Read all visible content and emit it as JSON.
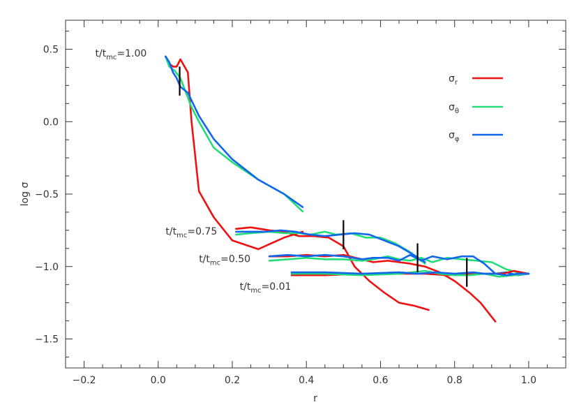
{
  "chart_data": {
    "type": "line",
    "title": "",
    "xlabel": "r",
    "ylabel": "log σ",
    "xlim": [
      -0.25,
      1.1
    ],
    "ylim": [
      -1.7,
      0.7
    ],
    "xticks": [
      "−0.2",
      "0.0",
      "0.2",
      "0.4",
      "0.6",
      "0.8",
      "1.0"
    ],
    "xtick_values": [
      -0.2,
      0.0,
      0.2,
      0.4,
      0.6,
      0.8,
      1.0
    ],
    "yticks": [
      "0.5",
      "0.0",
      "−0.5",
      "−1.0",
      "−1.5"
    ],
    "ytick_values": [
      0.5,
      0.0,
      -0.5,
      -1.0,
      -1.5
    ],
    "grid": false,
    "legend_position": "top-right",
    "colors": {
      "sigma_r": "#ee1111",
      "sigma_theta": "#22dd77",
      "sigma_phi": "#1166ee",
      "marker": "#000000"
    },
    "legend": [
      {
        "key": "sigma_r",
        "symbol": "σ",
        "sub": "r"
      },
      {
        "key": "sigma_theta",
        "symbol": "σ",
        "sub": "θ"
      },
      {
        "key": "sigma_phi",
        "symbol": "σ",
        "sub": "φ"
      }
    ],
    "annotations": [
      {
        "prefix": "t/t",
        "sub": "mc",
        "value": "=1.00",
        "x": -0.17,
        "y": 0.45
      },
      {
        "prefix": "t/t",
        "sub": "mc",
        "value": "=0.75",
        "x": 0.02,
        "y": -0.78
      },
      {
        "prefix": "t/t",
        "sub": "mc",
        "value": "=0.50",
        "x": 0.11,
        "y": -0.97
      },
      {
        "prefix": "t/t",
        "sub": "mc",
        "value": "=0.01",
        "x": 0.22,
        "y": -1.16
      }
    ],
    "series": [
      {
        "key": "sigma_r",
        "group": "1.00",
        "x": [
          0.02,
          0.03,
          0.04,
          0.05,
          0.06,
          0.08,
          0.09,
          0.11,
          0.15,
          0.2,
          0.27,
          0.34,
          0.39
        ],
        "y": [
          0.45,
          0.4,
          0.38,
          0.38,
          0.43,
          0.34,
          0.0,
          -0.48,
          -0.66,
          -0.82,
          -0.88,
          -0.8,
          -0.76
        ]
      },
      {
        "key": "sigma_theta",
        "group": "1.00",
        "x": [
          0.02,
          0.03,
          0.045,
          0.06,
          0.075,
          0.09,
          0.11,
          0.15,
          0.2,
          0.27,
          0.34,
          0.39
        ],
        "y": [
          0.45,
          0.38,
          0.35,
          0.3,
          0.2,
          0.1,
          0.0,
          -0.18,
          -0.28,
          -0.4,
          -0.5,
          -0.62
        ]
      },
      {
        "key": "sigma_phi",
        "group": "1.00",
        "x": [
          0.02,
          0.03,
          0.04,
          0.05,
          0.06,
          0.08,
          0.11,
          0.15,
          0.2,
          0.27,
          0.34,
          0.39
        ],
        "y": [
          0.45,
          0.41,
          0.34,
          0.3,
          0.24,
          0.2,
          0.04,
          -0.12,
          -0.26,
          -0.4,
          -0.5,
          -0.59
        ]
      },
      {
        "key": "sigma_r",
        "group": "0.75",
        "x": [
          0.21,
          0.25,
          0.3,
          0.34,
          0.38,
          0.42,
          0.46,
          0.5,
          0.53,
          0.57,
          0.61,
          0.65,
          0.69,
          0.73
        ],
        "y": [
          -0.74,
          -0.73,
          -0.75,
          -0.76,
          -0.79,
          -0.79,
          -0.8,
          -0.86,
          -1.0,
          -1.1,
          -1.18,
          -1.25,
          -1.27,
          -1.3
        ]
      },
      {
        "key": "sigma_theta",
        "group": "0.75",
        "x": [
          0.21,
          0.25,
          0.3,
          0.34,
          0.38,
          0.41,
          0.45,
          0.48,
          0.52,
          0.56,
          0.6,
          0.64,
          0.68,
          0.72
        ],
        "y": [
          -0.78,
          -0.77,
          -0.76,
          -0.77,
          -0.77,
          -0.78,
          -0.76,
          -0.78,
          -0.77,
          -0.8,
          -0.8,
          -0.84,
          -0.9,
          -0.98
        ]
      },
      {
        "key": "sigma_phi",
        "group": "0.75",
        "x": [
          0.21,
          0.25,
          0.29,
          0.33,
          0.37,
          0.41,
          0.45,
          0.49,
          0.53,
          0.57,
          0.61,
          0.65,
          0.69,
          0.72
        ],
        "y": [
          -0.76,
          -0.76,
          -0.76,
          -0.75,
          -0.76,
          -0.78,
          -0.79,
          -0.78,
          -0.77,
          -0.78,
          -0.82,
          -0.86,
          -0.92,
          -0.97
        ]
      },
      {
        "key": "sigma_r",
        "group": "0.50",
        "x": [
          0.3,
          0.35,
          0.4,
          0.45,
          0.5,
          0.55,
          0.58,
          0.62,
          0.65,
          0.68,
          0.72,
          0.76,
          0.8,
          0.84,
          0.87,
          0.91
        ],
        "y": [
          -0.93,
          -0.93,
          -0.92,
          -0.93,
          -0.92,
          -0.95,
          -0.97,
          -0.96,
          -0.97,
          -0.98,
          -1.0,
          -1.04,
          -1.1,
          -1.18,
          -1.25,
          -1.38
        ]
      },
      {
        "key": "sigma_theta",
        "group": "0.50",
        "x": [
          0.3,
          0.35,
          0.4,
          0.45,
          0.5,
          0.55,
          0.58,
          0.62,
          0.65,
          0.68,
          0.71,
          0.74,
          0.78,
          0.82,
          0.86,
          0.9,
          0.94,
          0.97,
          1.0
        ],
        "y": [
          -0.96,
          -0.95,
          -0.94,
          -0.95,
          -0.95,
          -0.96,
          -0.95,
          -0.93,
          -0.95,
          -0.96,
          -0.94,
          -0.97,
          -0.94,
          -0.95,
          -0.96,
          -0.97,
          -1.02,
          -1.04,
          -1.05
        ]
      },
      {
        "key": "sigma_phi",
        "group": "0.50",
        "x": [
          0.3,
          0.35,
          0.4,
          0.45,
          0.5,
          0.55,
          0.58,
          0.62,
          0.65,
          0.68,
          0.71,
          0.74,
          0.78,
          0.82,
          0.85,
          0.88,
          0.91,
          0.94,
          0.97,
          1.0
        ],
        "y": [
          -0.93,
          -0.92,
          -0.93,
          -0.92,
          -0.93,
          -0.95,
          -0.94,
          -0.94,
          -0.96,
          -0.92,
          -0.96,
          -0.93,
          -0.95,
          -0.93,
          -0.93,
          -0.98,
          -1.05,
          -1.04,
          -1.06,
          -1.05
        ]
      },
      {
        "key": "sigma_r",
        "group": "0.01",
        "x": [
          0.36,
          0.45,
          0.55,
          0.65,
          0.72,
          0.78,
          0.85,
          0.9,
          0.93,
          0.96,
          0.98,
          1.0
        ],
        "y": [
          -1.06,
          -1.06,
          -1.05,
          -1.05,
          -1.05,
          -1.06,
          -1.05,
          -1.05,
          -1.05,
          -1.03,
          -1.04,
          -1.05
        ]
      },
      {
        "key": "sigma_theta",
        "group": "0.01",
        "x": [
          0.36,
          0.45,
          0.55,
          0.65,
          0.72,
          0.76,
          0.8,
          0.84,
          0.88,
          0.92,
          0.96,
          1.0
        ],
        "y": [
          -1.05,
          -1.05,
          -1.06,
          -1.05,
          -1.03,
          -1.05,
          -1.06,
          -1.06,
          -1.05,
          -1.07,
          -1.06,
          -1.05
        ]
      },
      {
        "key": "sigma_phi",
        "group": "0.01",
        "x": [
          0.36,
          0.45,
          0.55,
          0.65,
          0.7,
          0.75,
          0.8,
          0.85,
          0.88,
          0.91,
          0.94,
          0.97,
          1.0
        ],
        "y": [
          -1.04,
          -1.04,
          -1.05,
          -1.04,
          -1.05,
          -1.04,
          -1.05,
          -1.04,
          -1.05,
          -1.05,
          -1.06,
          -1.05,
          -1.05
        ]
      }
    ],
    "markers": [
      {
        "x": 0.058,
        "y_top": 0.38,
        "y_bottom": 0.18
      },
      {
        "x": 0.5,
        "y_top": -0.68,
        "y_bottom": -0.88
      },
      {
        "x": 0.7,
        "y_top": -0.84,
        "y_bottom": -1.04
      },
      {
        "x": 0.833,
        "y_top": -0.94,
        "y_bottom": -1.14
      }
    ]
  }
}
